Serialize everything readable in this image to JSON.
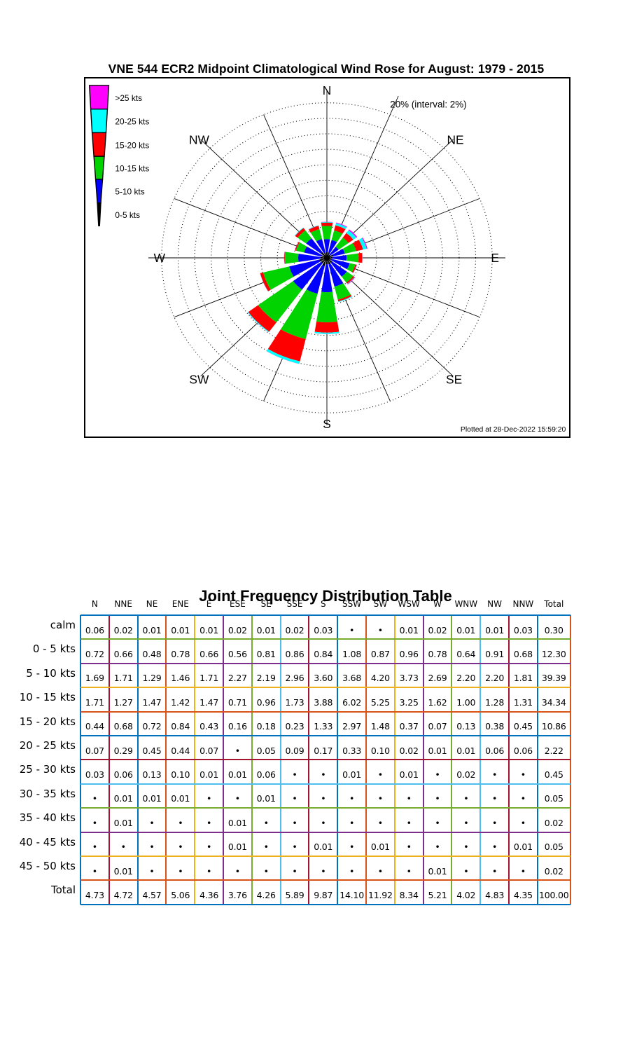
{
  "rose": {
    "title": "VNE 544 ECR2 Midpoint Climatological Wind Rose for August: 1979 - 2015",
    "scale_label": "20% (interval: 2%)",
    "plotted_at": "Plotted at 28-Dec-2022 15:59:20",
    "compass_labels": [
      "N",
      "NE",
      "E",
      "SE",
      "S",
      "SW",
      "W",
      "NW"
    ],
    "legend_labels": [
      ">25 kts",
      "20-25 kts",
      "15-20 kts",
      "10-15 kts",
      "5-10 kts",
      "0-5 kts"
    ],
    "legend_colors": [
      "#FF00FF",
      "#00FFFF",
      "#FF0000",
      "#00D300",
      "#0000FF",
      "#000000"
    ],
    "ring_max_pct": 20,
    "ring_interval_pct": 2
  },
  "chart_data": {
    "type": "windrose",
    "title": "VNE 544 ECR2 Midpoint Climatological Wind Rose for August: 1979 - 2015",
    "units": "percent frequency",
    "ring_max": 20,
    "ring_interval": 2,
    "directions": [
      "N",
      "NNE",
      "NE",
      "ENE",
      "E",
      "ESE",
      "SE",
      "SSE",
      "S",
      "SSW",
      "SW",
      "WSW",
      "W",
      "WNW",
      "NW",
      "NNW"
    ],
    "series": [
      {
        "name": "0-5 kts",
        "color": "#000000",
        "values": [
          0.72,
          0.66,
          0.48,
          0.78,
          0.66,
          0.56,
          0.81,
          0.86,
          0.84,
          1.08,
          0.87,
          0.96,
          0.78,
          0.64,
          0.91,
          0.68
        ]
      },
      {
        "name": "5-10 kts",
        "color": "#0000FF",
        "values": [
          1.69,
          1.71,
          1.29,
          1.46,
          1.71,
          2.27,
          2.19,
          2.96,
          3.6,
          3.68,
          4.2,
          3.73,
          2.69,
          2.2,
          2.2,
          1.81
        ]
      },
      {
        "name": "10-15 kts",
        "color": "#00D300",
        "values": [
          1.71,
          1.27,
          1.47,
          1.42,
          1.47,
          0.71,
          0.96,
          1.73,
          3.88,
          6.02,
          5.25,
          3.25,
          1.62,
          1.0,
          1.28,
          1.31
        ]
      },
      {
        "name": "15-20 kts",
        "color": "#FF0000",
        "values": [
          0.44,
          0.68,
          0.72,
          0.84,
          0.43,
          0.16,
          0.18,
          0.23,
          1.33,
          2.97,
          1.48,
          0.37,
          0.07,
          0.13,
          0.38,
          0.45
        ]
      },
      {
        "name": "20-25 kts",
        "color": "#00FFFF",
        "values": [
          0.07,
          0.29,
          0.45,
          0.44,
          0.07,
          0.0,
          0.05,
          0.09,
          0.17,
          0.33,
          0.1,
          0.02,
          0.01,
          0.01,
          0.06,
          0.06
        ]
      },
      {
        "name": ">25 kts",
        "color": "#FF00FF",
        "values": [
          0.03,
          0.09,
          0.14,
          0.11,
          0.01,
          0.03,
          0.07,
          0.0,
          0.01,
          0.01,
          0.01,
          0.01,
          0.02,
          0.02,
          0.0,
          0.01
        ]
      }
    ]
  },
  "table": {
    "title": "Joint Frequency Distribution Table",
    "dot": "•",
    "col_headers": [
      "N",
      "NNE",
      "NE",
      "ENE",
      "E",
      "ESE",
      "SE",
      "SSE",
      "S",
      "SSW",
      "SW",
      "WSW",
      "W",
      "WNW",
      "NW",
      "NNW",
      "Total"
    ],
    "row_headers": [
      "calm",
      "0 - 5  kts",
      "5 - 10 kts",
      "10 - 15 kts",
      "15 - 20 kts",
      "20 - 25 kts",
      "25 - 30 kts",
      "30 - 35 kts",
      "35 - 40 kts",
      "40 - 45 kts",
      "45 - 50 kts",
      "Total"
    ],
    "rows": [
      [
        "0.06",
        "0.02",
        "0.01",
        "0.01",
        "0.01",
        "0.02",
        "0.01",
        "0.02",
        "0.03",
        "•",
        "•",
        "0.01",
        "0.02",
        "0.01",
        "0.01",
        "0.03",
        "0.30"
      ],
      [
        "0.72",
        "0.66",
        "0.48",
        "0.78",
        "0.66",
        "0.56",
        "0.81",
        "0.86",
        "0.84",
        "1.08",
        "0.87",
        "0.96",
        "0.78",
        "0.64",
        "0.91",
        "0.68",
        "12.30"
      ],
      [
        "1.69",
        "1.71",
        "1.29",
        "1.46",
        "1.71",
        "2.27",
        "2.19",
        "2.96",
        "3.60",
        "3.68",
        "4.20",
        "3.73",
        "2.69",
        "2.20",
        "2.20",
        "1.81",
        "39.39"
      ],
      [
        "1.71",
        "1.27",
        "1.47",
        "1.42",
        "1.47",
        "0.71",
        "0.96",
        "1.73",
        "3.88",
        "6.02",
        "5.25",
        "3.25",
        "1.62",
        "1.00",
        "1.28",
        "1.31",
        "34.34"
      ],
      [
        "0.44",
        "0.68",
        "0.72",
        "0.84",
        "0.43",
        "0.16",
        "0.18",
        "0.23",
        "1.33",
        "2.97",
        "1.48",
        "0.37",
        "0.07",
        "0.13",
        "0.38",
        "0.45",
        "10.86"
      ],
      [
        "0.07",
        "0.29",
        "0.45",
        "0.44",
        "0.07",
        "•",
        "0.05",
        "0.09",
        "0.17",
        "0.33",
        "0.10",
        "0.02",
        "0.01",
        "0.01",
        "0.06",
        "0.06",
        "2.22"
      ],
      [
        "0.03",
        "0.06",
        "0.13",
        "0.10",
        "0.01",
        "0.01",
        "0.06",
        "•",
        "•",
        "0.01",
        "•",
        "0.01",
        "•",
        "0.02",
        "•",
        "•",
        "0.45"
      ],
      [
        "•",
        "0.01",
        "0.01",
        "0.01",
        "•",
        "•",
        "0.01",
        "•",
        "•",
        "•",
        "•",
        "•",
        "•",
        "•",
        "•",
        "•",
        "0.05"
      ],
      [
        "•",
        "0.01",
        "•",
        "•",
        "•",
        "0.01",
        "•",
        "•",
        "•",
        "•",
        "•",
        "•",
        "•",
        "•",
        "•",
        "•",
        "0.02"
      ],
      [
        "•",
        "•",
        "•",
        "•",
        "•",
        "0.01",
        "•",
        "•",
        "0.01",
        "•",
        "0.01",
        "•",
        "•",
        "•",
        "•",
        "0.01",
        "0.05"
      ],
      [
        "•",
        "0.01",
        "•",
        "•",
        "•",
        "•",
        "•",
        "•",
        "•",
        "•",
        "•",
        "•",
        "0.01",
        "•",
        "•",
        "•",
        "0.02"
      ],
      [
        "4.73",
        "4.72",
        "4.57",
        "5.06",
        "4.36",
        "3.76",
        "4.26",
        "5.89",
        "9.87",
        "14.10",
        "11.92",
        "8.34",
        "5.21",
        "4.02",
        "4.83",
        "4.35",
        "100.00"
      ]
    ],
    "border_v_colors": [
      "#0072BD",
      "#A2142F",
      "#0072BD",
      "#D95319",
      "#EDB120",
      "#7E2F8E",
      "#77AC30",
      "#4DBEEE",
      "#A2142F",
      "#0072BD",
      "#D95319",
      "#EDB120",
      "#7E2F8E",
      "#77AC30",
      "#4DBEEE",
      "#A2142F",
      "#0072BD",
      "#D95319"
    ],
    "border_h_colors": [
      "#0072BD",
      "#77AC30",
      "#7E2F8E",
      "#EDB120",
      "#D95319",
      "#0072BD",
      "#A2142F",
      "#4DBEEE",
      "#77AC30",
      "#7E2F8E",
      "#EDB120",
      "#D95319",
      "#0072BD"
    ]
  }
}
